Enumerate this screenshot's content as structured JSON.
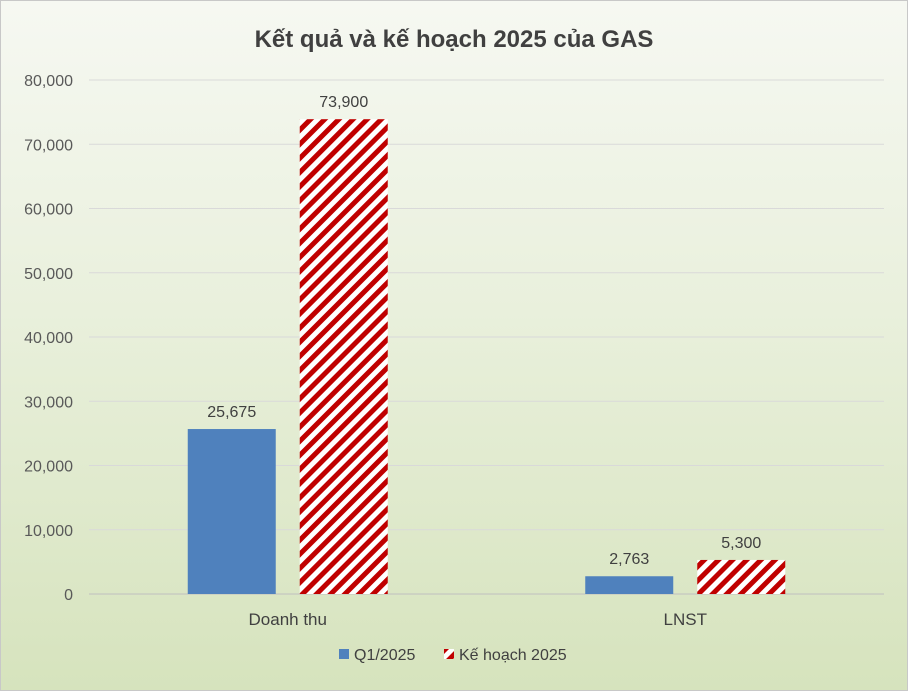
{
  "chart_data": {
    "type": "bar",
    "title": "Kết quả và kế hoạch 2025 của GAS",
    "categories": [
      "Doanh thu",
      "LNST"
    ],
    "series": [
      {
        "name": "Q1/2025",
        "values": [
          25675,
          2763
        ],
        "labels": [
          "25,675",
          "2,763"
        ],
        "color": "#4f81bd",
        "pattern": "solid"
      },
      {
        "name": "Kế hoạch 2025",
        "values": [
          73900,
          5300
        ],
        "labels": [
          "73,900",
          "5,300"
        ],
        "color": "#c00000",
        "pattern": "diagonal-stripes"
      }
    ],
    "yticks": [
      "0",
      "10,000",
      "20,000",
      "30,000",
      "40,000",
      "50,000",
      "60,000",
      "70,000",
      "80,000"
    ],
    "ylim": [
      0,
      80000
    ],
    "legend_position": "bottom"
  }
}
